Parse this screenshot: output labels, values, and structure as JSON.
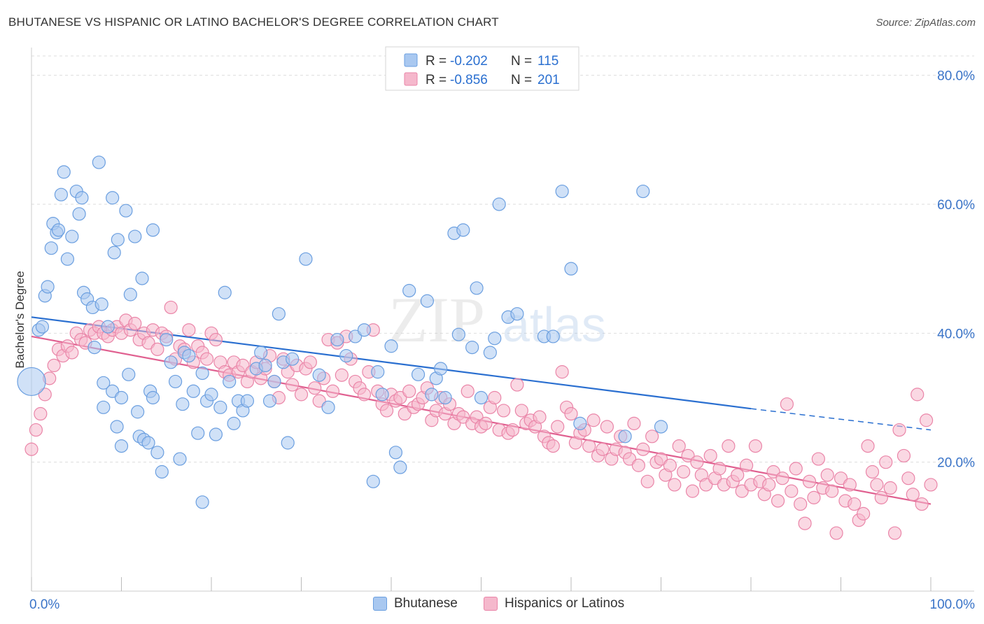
{
  "title": "BHUTANESE VS HISPANIC OR LATINO BACHELOR'S DEGREE CORRELATION CHART",
  "source": "Source: ZipAtlas.com",
  "watermark": {
    "zip": "ZIP",
    "atlas": "atlas"
  },
  "colors": {
    "blue_fill": "#a9c8f0",
    "blue_stroke": "#6b9fe0",
    "blue_line": "#2a6fd0",
    "pink_fill": "#f5b8cc",
    "pink_stroke": "#ea85a8",
    "pink_line": "#e06090",
    "axis_text": "#3a74c8",
    "grid": "#dddddd"
  },
  "legend_box": [
    {
      "r_label": "R =",
      "r_value": "-0.202",
      "n_label": "N =",
      "n_value": "115"
    },
    {
      "r_label": "R =",
      "r_value": "-0.856",
      "n_label": "N =",
      "n_value": "201"
    }
  ],
  "chart_data": {
    "type": "scatter",
    "xlabel": "",
    "ylabel": "Bachelor's Degree",
    "x_ticks": [
      "0.0%",
      "100.0%"
    ],
    "y_ticks": [
      "20.0%",
      "40.0%",
      "60.0%",
      "80.0%"
    ],
    "xlim": [
      0,
      100
    ],
    "ylim": [
      0,
      83
    ],
    "grid": true,
    "legend_position": "bottom",
    "series": [
      {
        "name": "Bhutanese",
        "color": "#a9c8f0",
        "trend": {
          "x": [
            0,
            80
          ],
          "y": [
            42.5,
            28.3
          ],
          "dashed_to": 100,
          "dashed_y": 25.0
        },
        "points": [
          [
            0,
            32.5
          ],
          [
            0.8,
            40.5
          ],
          [
            1.2,
            41
          ],
          [
            1.5,
            45.8
          ],
          [
            1.8,
            47.2
          ],
          [
            2.2,
            53.2
          ],
          [
            2.4,
            57
          ],
          [
            2.8,
            55.6
          ],
          [
            3,
            56
          ],
          [
            3.3,
            61.5
          ],
          [
            3.6,
            65
          ],
          [
            4,
            51.5
          ],
          [
            4.5,
            55
          ],
          [
            5,
            62
          ],
          [
            5.3,
            58.5
          ],
          [
            5.6,
            61
          ],
          [
            5.8,
            46.3
          ],
          [
            6.2,
            45.3
          ],
          [
            6.8,
            44
          ],
          [
            7.5,
            66.5
          ],
          [
            7.8,
            44.5
          ],
          [
            8.5,
            41
          ],
          [
            9,
            61
          ],
          [
            9.2,
            52.5
          ],
          [
            9.6,
            54.5
          ],
          [
            10.5,
            59
          ],
          [
            11,
            46
          ],
          [
            11.5,
            55
          ],
          [
            12.3,
            48.5
          ],
          [
            13.5,
            56
          ],
          [
            7,
            37.8
          ],
          [
            8,
            32.3
          ],
          [
            9,
            31
          ],
          [
            10,
            30
          ],
          [
            10.8,
            33.6
          ],
          [
            11.8,
            27.8
          ],
          [
            12,
            24
          ],
          [
            12.5,
            23.5
          ],
          [
            13.2,
            31
          ],
          [
            13.5,
            30
          ],
          [
            14,
            21.5
          ],
          [
            14.5,
            18.5
          ],
          [
            15,
            39
          ],
          [
            15.5,
            35.5
          ],
          [
            16,
            32.5
          ],
          [
            16.5,
            20.5
          ],
          [
            16.8,
            29
          ],
          [
            17,
            37
          ],
          [
            17.5,
            36.5
          ],
          [
            18,
            31
          ],
          [
            18.5,
            24.5
          ],
          [
            19,
            33.8
          ],
          [
            19.5,
            29.5
          ],
          [
            20,
            30.5
          ],
          [
            20.5,
            24.3
          ],
          [
            21,
            28.5
          ],
          [
            21.5,
            46.3
          ],
          [
            22,
            32.5
          ],
          [
            22.5,
            26
          ],
          [
            23,
            29.5
          ],
          [
            23.5,
            28
          ],
          [
            24,
            29.5
          ],
          [
            25,
            34.5
          ],
          [
            25.5,
            37
          ],
          [
            26,
            35
          ],
          [
            26.5,
            29.5
          ],
          [
            27,
            32.5
          ],
          [
            27.5,
            43
          ],
          [
            28,
            35.5
          ],
          [
            28.5,
            23
          ],
          [
            29,
            36
          ],
          [
            30.5,
            51.5
          ],
          [
            32,
            33.5
          ],
          [
            33,
            28.5
          ],
          [
            34,
            39
          ],
          [
            35,
            36.5
          ],
          [
            36,
            39.5
          ],
          [
            37,
            40.5
          ],
          [
            38,
            17
          ],
          [
            38.5,
            34
          ],
          [
            39,
            30.5
          ],
          [
            40,
            38
          ],
          [
            40.5,
            21.5
          ],
          [
            41,
            19.2
          ],
          [
            42,
            46.6
          ],
          [
            43,
            33.6
          ],
          [
            44,
            45
          ],
          [
            44.5,
            30.5
          ],
          [
            45,
            33
          ],
          [
            45.5,
            34.5
          ],
          [
            46,
            30
          ],
          [
            47,
            55.5
          ],
          [
            47.5,
            39.8
          ],
          [
            48,
            56
          ],
          [
            49,
            37.8
          ],
          [
            49.5,
            47
          ],
          [
            50,
            30
          ],
          [
            51,
            37
          ],
          [
            51.5,
            39.2
          ],
          [
            52,
            60
          ],
          [
            53,
            42.5
          ],
          [
            54,
            43
          ],
          [
            57,
            39.5
          ],
          [
            58,
            39.5
          ],
          [
            59,
            62
          ],
          [
            60,
            50
          ],
          [
            61,
            26
          ],
          [
            66,
            24
          ],
          [
            68,
            62
          ],
          [
            70,
            25.5
          ],
          [
            8,
            28.5
          ],
          [
            9.5,
            25.5
          ],
          [
            10,
            22.5
          ],
          [
            19,
            13.8
          ],
          [
            13,
            23
          ]
        ]
      },
      {
        "name": "Hispanics or Latinos",
        "color": "#f5b8cc",
        "trend": {
          "x": [
            0,
            100
          ],
          "y": [
            39.5,
            13.5
          ]
        },
        "points": [
          [
            0,
            22
          ],
          [
            0.5,
            25
          ],
          [
            1,
            27.5
          ],
          [
            1.5,
            30.5
          ],
          [
            2,
            33
          ],
          [
            2.5,
            35
          ],
          [
            3,
            37.5
          ],
          [
            3.5,
            36.5
          ],
          [
            4,
            38
          ],
          [
            4.5,
            37
          ],
          [
            5,
            40
          ],
          [
            5.5,
            39
          ],
          [
            6,
            38.5
          ],
          [
            6.5,
            40.5
          ],
          [
            7,
            40
          ],
          [
            7.5,
            41
          ],
          [
            8,
            40
          ],
          [
            8.5,
            39.5
          ],
          [
            9,
            40.5
          ],
          [
            9.5,
            41
          ],
          [
            10,
            40
          ],
          [
            10.5,
            42
          ],
          [
            11,
            40.5
          ],
          [
            11.5,
            41.5
          ],
          [
            12,
            39
          ],
          [
            12.5,
            40
          ],
          [
            13,
            38.5
          ],
          [
            13.5,
            40.5
          ],
          [
            14,
            37.5
          ],
          [
            14.5,
            40
          ],
          [
            15,
            39.5
          ],
          [
            15.5,
            44
          ],
          [
            16,
            36
          ],
          [
            16.5,
            38
          ],
          [
            17,
            37.5
          ],
          [
            17.5,
            40.5
          ],
          [
            18,
            35.5
          ],
          [
            18.5,
            38
          ],
          [
            19,
            37
          ],
          [
            19.5,
            36
          ],
          [
            20,
            40
          ],
          [
            20.5,
            39
          ],
          [
            21,
            35.5
          ],
          [
            21.5,
            34
          ],
          [
            22,
            33.5
          ],
          [
            22.5,
            35.5
          ],
          [
            23,
            34
          ],
          [
            23.5,
            35
          ],
          [
            24,
            32.5
          ],
          [
            24.5,
            34
          ],
          [
            25,
            35.5
          ],
          [
            25.5,
            33
          ],
          [
            26,
            34.5
          ],
          [
            26.5,
            36.5
          ],
          [
            27,
            32.5
          ],
          [
            27.5,
            30
          ],
          [
            28,
            36
          ],
          [
            28.5,
            34
          ],
          [
            29,
            32
          ],
          [
            29.5,
            35
          ],
          [
            30,
            30.5
          ],
          [
            30.5,
            34.5
          ],
          [
            31,
            35.5
          ],
          [
            31.5,
            31.5
          ],
          [
            32,
            29.5
          ],
          [
            32.5,
            33
          ],
          [
            33,
            39
          ],
          [
            33.5,
            31
          ],
          [
            34,
            38.5
          ],
          [
            34.5,
            33.5
          ],
          [
            35,
            39.5
          ],
          [
            35.5,
            36
          ],
          [
            36,
            32.5
          ],
          [
            36.5,
            31.5
          ],
          [
            37,
            30.5
          ],
          [
            37.5,
            34
          ],
          [
            38,
            40.5
          ],
          [
            38.5,
            31
          ],
          [
            39,
            29
          ],
          [
            39.5,
            28
          ],
          [
            40,
            30.5
          ],
          [
            40.5,
            29.5
          ],
          [
            41,
            30
          ],
          [
            41.5,
            27.5
          ],
          [
            42,
            31
          ],
          [
            42.5,
            28.5
          ],
          [
            43,
            29
          ],
          [
            43.5,
            30
          ],
          [
            44,
            31.5
          ],
          [
            44.5,
            26.5
          ],
          [
            45,
            28
          ],
          [
            45.5,
            30
          ],
          [
            46,
            27.5
          ],
          [
            46.5,
            29
          ],
          [
            47,
            26
          ],
          [
            47.5,
            27.5
          ],
          [
            48,
            27
          ],
          [
            48.5,
            31
          ],
          [
            49,
            26
          ],
          [
            49.5,
            27
          ],
          [
            50,
            25.5
          ],
          [
            50.5,
            26
          ],
          [
            51,
            28.5
          ],
          [
            51.5,
            30
          ],
          [
            52,
            25
          ],
          [
            52.5,
            28
          ],
          [
            53,
            24.5
          ],
          [
            53.5,
            25
          ],
          [
            54,
            32
          ],
          [
            54.5,
            28
          ],
          [
            55,
            26
          ],
          [
            55.5,
            26.5
          ],
          [
            56,
            25.5
          ],
          [
            56.5,
            27
          ],
          [
            57,
            24
          ],
          [
            57.5,
            23
          ],
          [
            58,
            22.5
          ],
          [
            58.5,
            25.5
          ],
          [
            59,
            34
          ],
          [
            59.5,
            28.5
          ],
          [
            60,
            27.5
          ],
          [
            60.5,
            23
          ],
          [
            61,
            24.5
          ],
          [
            61.5,
            25
          ],
          [
            62,
            22.5
          ],
          [
            62.5,
            26.5
          ],
          [
            63,
            21
          ],
          [
            63.5,
            22
          ],
          [
            64,
            25.5
          ],
          [
            64.5,
            20.5
          ],
          [
            65,
            22
          ],
          [
            65.5,
            24
          ],
          [
            66,
            21.5
          ],
          [
            66.5,
            20.5
          ],
          [
            67,
            26
          ],
          [
            67.5,
            19.5
          ],
          [
            68,
            22
          ],
          [
            68.5,
            17
          ],
          [
            69,
            24
          ],
          [
            69.5,
            20
          ],
          [
            70,
            20.5
          ],
          [
            70.5,
            18
          ],
          [
            71,
            19.5
          ],
          [
            71.5,
            16.5
          ],
          [
            72,
            22.5
          ],
          [
            72.5,
            18.5
          ],
          [
            73,
            21
          ],
          [
            73.5,
            15.5
          ],
          [
            74,
            20
          ],
          [
            74.5,
            18
          ],
          [
            75,
            16.5
          ],
          [
            75.5,
            21
          ],
          [
            76,
            17.5
          ],
          [
            76.5,
            19
          ],
          [
            77,
            16.5
          ],
          [
            77.5,
            22.5
          ],
          [
            78,
            17
          ],
          [
            78.5,
            18
          ],
          [
            79,
            15.5
          ],
          [
            79.5,
            19.5
          ],
          [
            80,
            16.5
          ],
          [
            80.5,
            22.5
          ],
          [
            81,
            17
          ],
          [
            81.5,
            15
          ],
          [
            82,
            16.5
          ],
          [
            82.5,
            18.5
          ],
          [
            83,
            14
          ],
          [
            83.5,
            17.5
          ],
          [
            84,
            29
          ],
          [
            84.5,
            15.5
          ],
          [
            85,
            19
          ],
          [
            85.5,
            13.5
          ],
          [
            86,
            10.5
          ],
          [
            86.5,
            17
          ],
          [
            87,
            14.5
          ],
          [
            87.5,
            20.5
          ],
          [
            88,
            16
          ],
          [
            88.5,
            18
          ],
          [
            89,
            15.5
          ],
          [
            89.5,
            9
          ],
          [
            90,
            17.5
          ],
          [
            90.5,
            14
          ],
          [
            91,
            16.5
          ],
          [
            91.5,
            13.5
          ],
          [
            92,
            11
          ],
          [
            92.5,
            12
          ],
          [
            93,
            22.5
          ],
          [
            93.5,
            18.5
          ],
          [
            94,
            16.5
          ],
          [
            94.5,
            14.5
          ],
          [
            95,
            20
          ],
          [
            95.5,
            16
          ],
          [
            96,
            9
          ],
          [
            96.5,
            25
          ],
          [
            97,
            21
          ],
          [
            97.5,
            17.5
          ],
          [
            98,
            15
          ],
          [
            98.5,
            30.5
          ],
          [
            99,
            13.5
          ],
          [
            99.5,
            26.5
          ],
          [
            100,
            16.5
          ]
        ]
      }
    ]
  }
}
